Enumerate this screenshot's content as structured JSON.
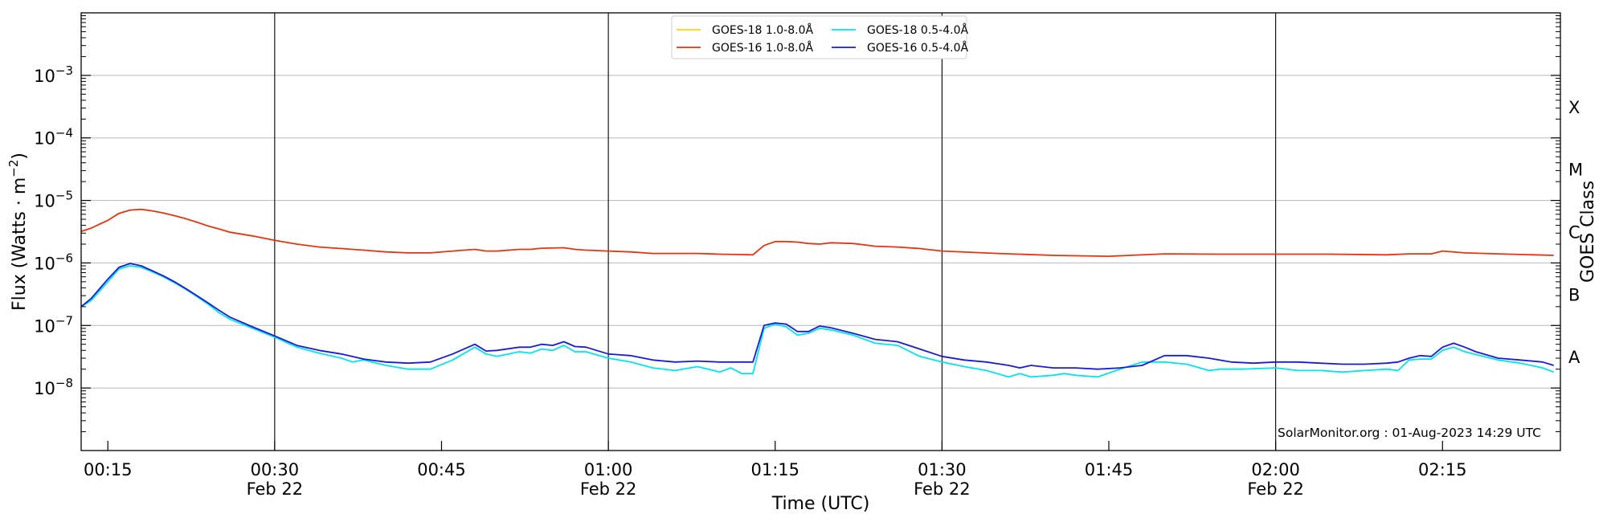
{
  "chart_data": {
    "type": "line",
    "x_label": "Time (UTC)",
    "y_label": "Flux (Watts · m",
    "y_label_sup": "−2",
    "y_label_close": ")",
    "right_label": "GOES Class",
    "credit": "SolarMonitor.org : 01-Aug-2023 14:29 UTC",
    "y_scale": "log",
    "y_range": [
      1e-09,
      0.01
    ],
    "x_range_minutes": [
      12.6,
      145.6
    ],
    "grid": "horizontal at major decades, vertical lines at 30-minute marks",
    "legend_position": "top-center",
    "y_ticks": [
      {
        "value": 1e-08,
        "base": "10",
        "exp": "−8"
      },
      {
        "value": 1e-07,
        "base": "10",
        "exp": "−7"
      },
      {
        "value": 1e-06,
        "base": "10",
        "exp": "−6"
      },
      {
        "value": 1e-05,
        "base": "10",
        "exp": "−5"
      },
      {
        "value": 0.0001,
        "base": "10",
        "exp": "−4"
      },
      {
        "value": 0.001,
        "base": "10",
        "exp": "−3"
      }
    ],
    "x_ticks": [
      {
        "minute": 15,
        "label": "00:15",
        "date": ""
      },
      {
        "minute": 30,
        "label": "00:30",
        "date": "Feb 22"
      },
      {
        "minute": 45,
        "label": "00:45",
        "date": ""
      },
      {
        "minute": 60,
        "label": "01:00",
        "date": "Feb 22"
      },
      {
        "minute": 75,
        "label": "01:15",
        "date": ""
      },
      {
        "minute": 90,
        "label": "01:30",
        "date": "Feb 22"
      },
      {
        "minute": 105,
        "label": "01:45",
        "date": ""
      },
      {
        "minute": 120,
        "label": "02:00",
        "date": "Feb 22"
      },
      {
        "minute": 135,
        "label": "02:15",
        "date": ""
      }
    ],
    "goes_classes": [
      {
        "label": "X",
        "value": 0.000316
      },
      {
        "label": "M",
        "value": 3.16e-05
      },
      {
        "label": "C",
        "value": 3.16e-06
      },
      {
        "label": "B",
        "value": 3.16e-07
      },
      {
        "label": "A",
        "value": 3.16e-08
      }
    ],
    "series": [
      {
        "name": "GOES-18 1.0-8.0Å",
        "color": "#ffd400",
        "x": [],
        "y": []
      },
      {
        "name": "GOES-16 1.0-8.0Å",
        "color": "#e8330e",
        "x": [
          12.6,
          13.5,
          15,
          16,
          17,
          18,
          19,
          20,
          21,
          22,
          23,
          24,
          25,
          26,
          28,
          30,
          32,
          34,
          36,
          38,
          40,
          42,
          44,
          46,
          48,
          49,
          50,
          52,
          53,
          54,
          56,
          57,
          58,
          60,
          62,
          64,
          66,
          68,
          70,
          72,
          73,
          74,
          75,
          76,
          77,
          78,
          79,
          80,
          82,
          84,
          86,
          88,
          90,
          95,
          100,
          105,
          110,
          115,
          120,
          125,
          130,
          132,
          134,
          135,
          137,
          140,
          145
        ],
        "y": [
          3.2e-06,
          3.6e-06,
          4.8e-06,
          6.2e-06,
          7e-06,
          7.2e-06,
          6.8e-06,
          6.3e-06,
          5.7e-06,
          5.1e-06,
          4.5e-06,
          3.9e-06,
          3.5e-06,
          3.1e-06,
          2.7e-06,
          2.3e-06,
          2e-06,
          1.8e-06,
          1.7e-06,
          1.6e-06,
          1.5e-06,
          1.45e-06,
          1.45e-06,
          1.55e-06,
          1.65e-06,
          1.55e-06,
          1.55e-06,
          1.65e-06,
          1.65e-06,
          1.72e-06,
          1.75e-06,
          1.65e-06,
          1.6e-06,
          1.55e-06,
          1.5e-06,
          1.42e-06,
          1.42e-06,
          1.42e-06,
          1.38e-06,
          1.36e-06,
          1.35e-06,
          1.9e-06,
          2.2e-06,
          2.2e-06,
          2.15e-06,
          2.05e-06,
          2e-06,
          2.1e-06,
          2.05e-06,
          1.85e-06,
          1.8e-06,
          1.7e-06,
          1.55e-06,
          1.42e-06,
          1.32e-06,
          1.28e-06,
          1.4e-06,
          1.38e-06,
          1.38e-06,
          1.38e-06,
          1.35e-06,
          1.4e-06,
          1.4e-06,
          1.55e-06,
          1.45e-06,
          1.4e-06,
          1.32e-06
        ]
      },
      {
        "name": "GOES-18 0.5-4.0Å",
        "color": "#00e5ee",
        "x": [
          12.6,
          13.5,
          15,
          16,
          17,
          18,
          19,
          20,
          21,
          22,
          23,
          24,
          25,
          26,
          28,
          30,
          32,
          34,
          36,
          37,
          38,
          40,
          42,
          44,
          46,
          48,
          49,
          50,
          52,
          53,
          54,
          55,
          56,
          57,
          58,
          60,
          62,
          64,
          66,
          68,
          69,
          70,
          71,
          72,
          73,
          74,
          75,
          76,
          77,
          78,
          79,
          80,
          82,
          84,
          86,
          88,
          90,
          92,
          94,
          96,
          97,
          98,
          100,
          101,
          102,
          104,
          106,
          108,
          110,
          112,
          114,
          115,
          117,
          120,
          122,
          124,
          126,
          128,
          130,
          131,
          132,
          133,
          134,
          135,
          136,
          137,
          140,
          142,
          144,
          145
        ],
        "y": [
          2e-07,
          2.5e-07,
          5e-07,
          8e-07,
          9e-07,
          8.5e-07,
          7.2e-07,
          6e-07,
          4.8e-07,
          3.8e-07,
          2.9e-07,
          2.2e-07,
          1.6e-07,
          1.25e-07,
          9e-08,
          6.5e-08,
          4.5e-08,
          3.6e-08,
          3e-08,
          2.6e-08,
          2.8e-08,
          2.3e-08,
          2e-08,
          2e-08,
          2.8e-08,
          4.5e-08,
          3.5e-08,
          3.2e-08,
          3.8e-08,
          3.6e-08,
          4.2e-08,
          4e-08,
          4.8e-08,
          3.8e-08,
          3.8e-08,
          3e-08,
          2.6e-08,
          2.1e-08,
          1.9e-08,
          2.2e-08,
          2e-08,
          1.8e-08,
          2.1e-08,
          1.7e-08,
          1.7e-08,
          9e-08,
          1.05e-07,
          9.5e-08,
          7e-08,
          7.5e-08,
          9e-08,
          8.5e-08,
          7e-08,
          5.2e-08,
          4.8e-08,
          3.2e-08,
          2.6e-08,
          2.2e-08,
          1.9e-08,
          1.5e-08,
          1.7e-08,
          1.5e-08,
          1.6e-08,
          1.7e-08,
          1.6e-08,
          1.5e-08,
          2e-08,
          2.6e-08,
          2.6e-08,
          2.4e-08,
          1.9e-08,
          2e-08,
          2e-08,
          2.1e-08,
          1.9e-08,
          1.9e-08,
          1.8e-08,
          1.9e-08,
          2e-08,
          1.9e-08,
          2.8e-08,
          2.9e-08,
          2.9e-08,
          4e-08,
          4.5e-08,
          3.8e-08,
          2.8e-08,
          2.5e-08,
          2.1e-08,
          1.8e-08
        ]
      },
      {
        "name": "GOES-16 0.5-4.0Å",
        "color": "#1a1adb",
        "x": [
          12.6,
          13.5,
          15,
          16,
          17,
          18,
          19,
          20,
          21,
          22,
          23,
          24,
          25,
          26,
          28,
          30,
          32,
          34,
          36,
          38,
          40,
          42,
          44,
          46,
          48,
          49,
          50,
          52,
          53,
          54,
          55,
          56,
          57,
          58,
          60,
          62,
          64,
          66,
          68,
          70,
          72,
          73,
          74,
          75,
          76,
          77,
          78,
          79,
          80,
          82,
          84,
          86,
          88,
          90,
          92,
          94,
          96,
          97,
          98,
          100,
          102,
          104,
          106,
          108,
          110,
          112,
          114,
          116,
          118,
          120,
          122,
          124,
          126,
          128,
          130,
          131,
          132,
          133,
          134,
          135,
          136,
          137,
          138,
          140,
          142,
          144,
          145
        ],
        "y": [
          2e-07,
          2.7e-07,
          5.5e-07,
          8.5e-07,
          9.8e-07,
          9e-07,
          7.5e-07,
          6.2e-07,
          5e-07,
          3.9e-07,
          3e-07,
          2.3e-07,
          1.75e-07,
          1.35e-07,
          9.5e-08,
          6.8e-08,
          4.8e-08,
          4e-08,
          3.5e-08,
          2.9e-08,
          2.6e-08,
          2.5e-08,
          2.6e-08,
          3.5e-08,
          5e-08,
          3.9e-08,
          4e-08,
          4.5e-08,
          4.5e-08,
          5e-08,
          4.8e-08,
          5.5e-08,
          4.6e-08,
          4.5e-08,
          3.5e-08,
          3.3e-08,
          2.8e-08,
          2.6e-08,
          2.7e-08,
          2.6e-08,
          2.6e-08,
          2.6e-08,
          1e-07,
          1.1e-07,
          1.05e-07,
          8e-08,
          8e-08,
          9.8e-08,
          9.2e-08,
          7.5e-08,
          6e-08,
          5.5e-08,
          4.2e-08,
          3.2e-08,
          2.8e-08,
          2.6e-08,
          2.3e-08,
          2.1e-08,
          2.3e-08,
          2.1e-08,
          2.1e-08,
          2e-08,
          2.1e-08,
          2.3e-08,
          3.3e-08,
          3.3e-08,
          3e-08,
          2.6e-08,
          2.5e-08,
          2.6e-08,
          2.6e-08,
          2.5e-08,
          2.4e-08,
          2.4e-08,
          2.5e-08,
          2.6e-08,
          3e-08,
          3.3e-08,
          3.2e-08,
          4.5e-08,
          5.2e-08,
          4.5e-08,
          3.8e-08,
          3e-08,
          2.8e-08,
          2.6e-08,
          2.3e-08
        ]
      }
    ]
  }
}
